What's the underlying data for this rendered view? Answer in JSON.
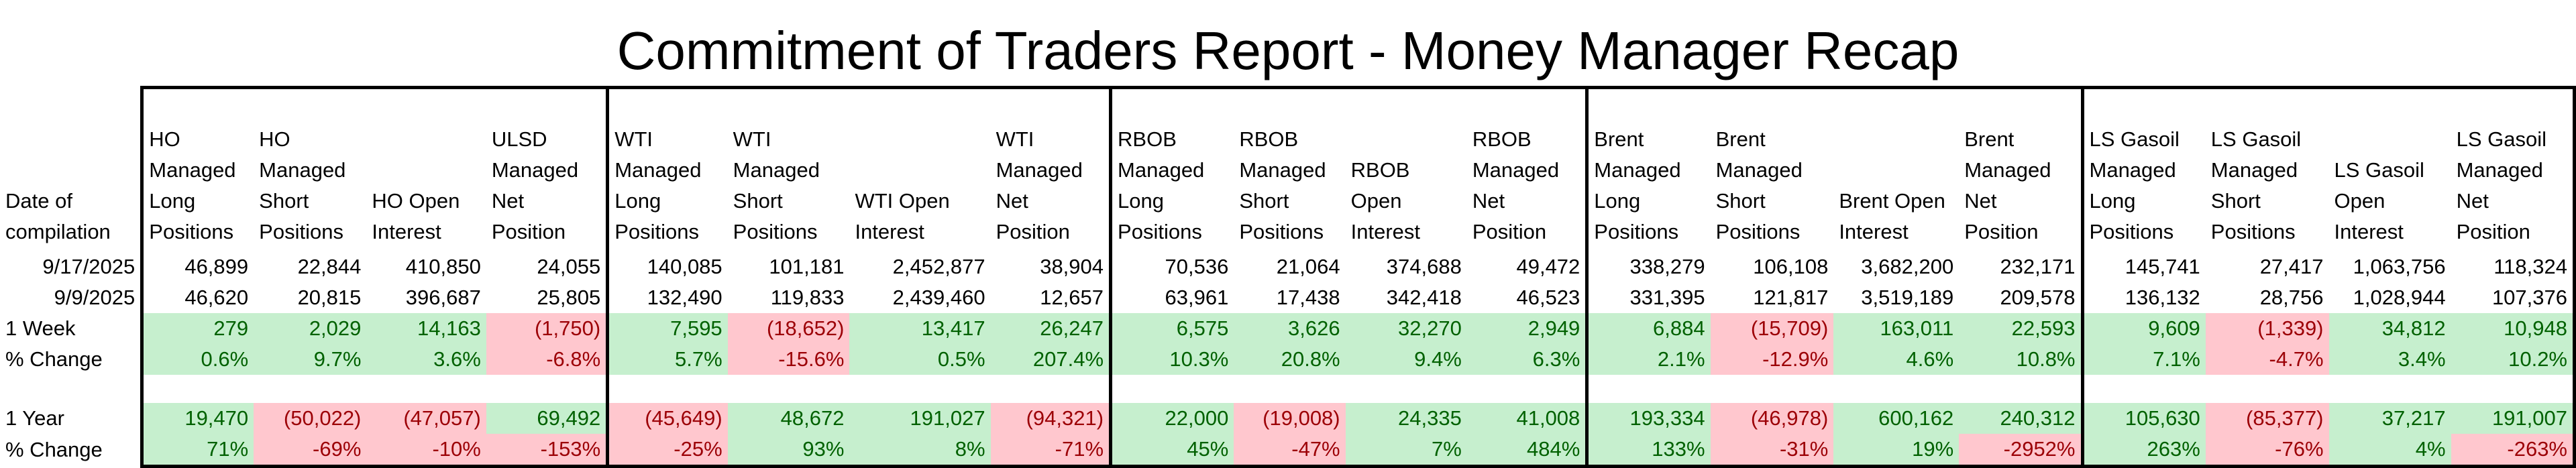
{
  "title": "Commitment of Traders Report - Money Manager Recap",
  "date_header": "Date of compilation",
  "columns": [
    "HO Managed Long Positions",
    "HO Managed Short Positions",
    "HO Open Interest",
    "ULSD Managed Net Position",
    "WTI Managed Long Positions",
    "WTI Managed Short Positions",
    "WTI Open Interest",
    "WTI Managed Net Position",
    "RBOB Managed Long Positions",
    "RBOB Managed Short Positions",
    "RBOB Open Interest",
    "RBOB Managed Net Position",
    "Brent Managed Long Positions",
    "Brent Managed Short Positions",
    "Brent Open Interest",
    "Brent Managed Net Position",
    "LS Gasoil Managed Long Positions",
    "LS Gasoil Managed Short Positions",
    "LS Gasoil Open Interest",
    "LS Gasoil Managed Net Position"
  ],
  "rows": [
    {
      "label": "9/17/2025",
      "values": [
        "46,899",
        "22,844",
        "410,850",
        "24,055",
        "140,085",
        "101,181",
        "2,452,877",
        "38,904",
        "70,536",
        "21,064",
        "374,688",
        "49,472",
        "338,279",
        "106,108",
        "3,682,200",
        "232,171",
        "145,741",
        "27,417",
        "1,063,756",
        "118,324"
      ]
    },
    {
      "label": "9/9/2025",
      "values": [
        "46,620",
        "20,815",
        "396,687",
        "25,805",
        "132,490",
        "119,833",
        "2,439,460",
        "12,657",
        "63,961",
        "17,438",
        "342,418",
        "46,523",
        "331,395",
        "121,817",
        "3,519,189",
        "209,578",
        "136,132",
        "28,756",
        "1,028,944",
        "107,376"
      ]
    },
    {
      "label": "1 Week",
      "values": [
        "279",
        "2,029",
        "14,163",
        "(1,750)",
        "7,595",
        "(18,652)",
        "13,417",
        "26,247",
        "6,575",
        "3,626",
        "32,270",
        "2,949",
        "6,884",
        "(15,709)",
        "163,011",
        "22,593",
        "9,609",
        "(1,339)",
        "34,812",
        "10,948"
      ]
    },
    {
      "label": "% Change",
      "values": [
        "0.6%",
        "9.7%",
        "3.6%",
        "-6.8%",
        "5.7%",
        "-15.6%",
        "0.5%",
        "207.4%",
        "10.3%",
        "20.8%",
        "9.4%",
        "6.3%",
        "2.1%",
        "-12.9%",
        "4.6%",
        "10.8%",
        "7.1%",
        "-4.7%",
        "3.4%",
        "10.2%"
      ]
    },
    {
      "label": "1 Year",
      "values": [
        "19,470",
        "(50,022)",
        "(47,057)",
        "69,492",
        "(45,649)",
        "48,672",
        "191,027",
        "(94,321)",
        "22,000",
        "(19,008)",
        "24,335",
        "41,008",
        "193,334",
        "(46,978)",
        "600,162",
        "240,312",
        "105,630",
        "(85,377)",
        "37,217",
        "191,007"
      ]
    },
    {
      "label": "% Change",
      "values": [
        "71%",
        "-69%",
        "-10%",
        "-153%",
        "-25%",
        "93%",
        "8%",
        "-71%",
        "45%",
        "-47%",
        "7%",
        "484%",
        "133%",
        "-31%",
        "19%",
        "-2952%",
        "263%",
        "-76%",
        "4%",
        "-263%"
      ]
    }
  ],
  "colors": {
    "positive_fill": "#c6efce",
    "positive_text": "#006100",
    "negative_fill": "#ffc7ce",
    "negative_text": "#9c0006"
  }
}
